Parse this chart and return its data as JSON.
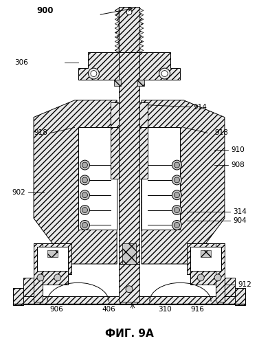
{
  "title": "ФИГ. 9А",
  "label_900": "900",
  "label_306": "306",
  "label_914": "914",
  "label_918_left": "918",
  "label_918_right": "918",
  "label_910": "910",
  "label_908": "908",
  "label_902": "902",
  "label_314": "314",
  "label_904": "904",
  "label_912": "912",
  "label_906": "906",
  "label_406": "406",
  "label_310": "310",
  "label_916": "916",
  "bg_color": "#ffffff",
  "line_color": "#000000",
  "fig_width": 3.77,
  "fig_height": 4.99,
  "dpi": 100
}
